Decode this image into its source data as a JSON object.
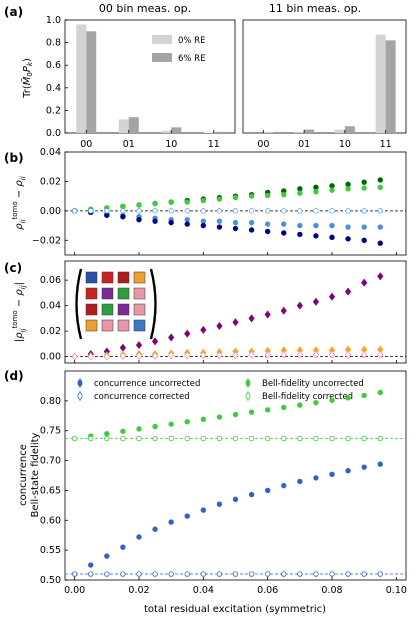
{
  "chart_data": [
    {
      "panel": "(a)",
      "type": "bar",
      "title": "00 bin meas. op.",
      "ylabel": "Tr(M\u00030 P_k)",
      "categories": [
        "00",
        "01",
        "10",
        "11"
      ],
      "ylim": [
        0,
        1.0
      ],
      "yticks": [
        "0.0",
        "0.2",
        "0.4",
        "0.6",
        "0.8",
        "1.0"
      ],
      "legend_position": "upper-right",
      "colors": {
        "0% RE": "#d3d3d3",
        "6% RE": "#a4a4a4"
      },
      "series": [
        {
          "name": "0% RE",
          "values": [
            0.96,
            0.12,
            0.02,
            0.005
          ]
        },
        {
          "name": "6% RE",
          "values": [
            0.9,
            0.14,
            0.05,
            0.01
          ]
        }
      ]
    },
    {
      "panel": "(a)",
      "type": "bar",
      "title": "11 bin meas. op.",
      "categories": [
        "00",
        "01",
        "10",
        "11"
      ],
      "ylim": [
        0,
        1.0
      ],
      "series": [
        {
          "name": "0% RE",
          "values": [
            0.0,
            0.01,
            0.03,
            0.87
          ]
        },
        {
          "name": "6% RE",
          "values": [
            0.005,
            0.03,
            0.06,
            0.82
          ]
        }
      ]
    },
    {
      "panel": "(b)",
      "type": "scatter",
      "ylabel": "rho_ii^tomo - rho_ii",
      "xlim": [
        0,
        0.1
      ],
      "ylim": [
        -0.03,
        0.04
      ],
      "yticks": [
        "−0.02",
        "0.00",
        "0.02",
        "0.04"
      ],
      "x": [
        0.0,
        0.005,
        0.01,
        0.015,
        0.02,
        0.025,
        0.03,
        0.035,
        0.04,
        0.045,
        0.05,
        0.055,
        0.06,
        0.065,
        0.07,
        0.075,
        0.08,
        0.085,
        0.09,
        0.095
      ],
      "series": [
        {
          "color": "#006400",
          "values": [
            0.0,
            0.001,
            0.002,
            0.003,
            0.004,
            0.005,
            0.006,
            0.007,
            0.008,
            0.009,
            0.01,
            0.011,
            0.0125,
            0.0135,
            0.015,
            0.016,
            0.017,
            0.018,
            0.0195,
            0.021
          ]
        },
        {
          "color": "#3ecb3e",
          "values": [
            0.0,
            0.001,
            0.002,
            0.003,
            0.004,
            0.005,
            0.006,
            0.006,
            0.007,
            0.008,
            0.009,
            0.01,
            0.0105,
            0.011,
            0.012,
            0.013,
            0.014,
            0.015,
            0.0155,
            0.016
          ]
        },
        {
          "color": "#4a90d9",
          "values": [
            0.0,
            -0.001,
            -0.002,
            -0.003,
            -0.004,
            -0.005,
            -0.006,
            -0.006,
            -0.007,
            -0.007,
            -0.008,
            -0.008,
            -0.009,
            -0.009,
            -0.01,
            -0.01,
            -0.01,
            -0.011,
            -0.011,
            -0.011
          ]
        },
        {
          "color": "#00008b",
          "values": [
            0.0,
            -0.001,
            -0.003,
            -0.004,
            -0.006,
            -0.007,
            -0.008,
            -0.009,
            -0.01,
            -0.011,
            -0.012,
            -0.013,
            -0.014,
            -0.015,
            -0.016,
            -0.017,
            -0.018,
            -0.019,
            -0.02,
            -0.022
          ]
        },
        {
          "color": "#5fa8e0",
          "open": true,
          "values": [
            0.0,
            0.0,
            0.0,
            0.0,
            0.0,
            0.0,
            0.0,
            0.0,
            0.0,
            0.0,
            0.0,
            0.0,
            0.0,
            0.0,
            0.0,
            0.0,
            0.0,
            0.0,
            0.0,
            0.0
          ]
        }
      ]
    },
    {
      "panel": "(c)",
      "type": "scatter",
      "ylabel": "|rho_ij^tomo - rho_ij|",
      "xlim": [
        0,
        0.1
      ],
      "ylim": [
        -0.005,
        0.075
      ],
      "yticks": [
        "0.00",
        "0.02",
        "0.04",
        "0.06"
      ],
      "x": [
        0.0,
        0.005,
        0.01,
        0.015,
        0.02,
        0.025,
        0.03,
        0.035,
        0.04,
        0.045,
        0.05,
        0.055,
        0.06,
        0.065,
        0.07,
        0.075,
        0.08,
        0.085,
        0.09,
        0.095
      ],
      "series": [
        {
          "color": "#800080",
          "values": [
            0.0,
            0.002,
            0.004,
            0.007,
            0.009,
            0.012,
            0.015,
            0.018,
            0.021,
            0.024,
            0.027,
            0.03,
            0.033,
            0.036,
            0.04,
            0.043,
            0.047,
            0.051,
            0.058,
            0.063
          ]
        },
        {
          "color": "#f5a623",
          "values": [
            0.0,
            0.0005,
            0.001,
            0.0015,
            0.002,
            0.002,
            0.0025,
            0.003,
            0.003,
            0.0035,
            0.004,
            0.004,
            0.0045,
            0.005,
            0.005,
            0.005,
            0.005,
            0.0055,
            0.0055,
            0.0055
          ]
        },
        {
          "color": "#e8a0a8",
          "open": true,
          "values": [
            0.0,
            0.0,
            0.0,
            0.0005,
            0.0005,
            0.0005,
            0.001,
            0.001,
            0.001,
            0.001,
            0.001,
            0.0015,
            0.0015,
            0.0015,
            0.0015,
            0.0015,
            0.0015,
            0.0015,
            0.0015,
            0.0015
          ]
        }
      ],
      "inset_grid_colors": [
        [
          "#2a4fa8",
          "#cc2222",
          "#b01c1c",
          "#f0a030"
        ],
        [
          "#cc2222",
          "#7a2a90",
          "#2e9e3e",
          "#e898a8"
        ],
        [
          "#b01c1c",
          "#2e9e3e",
          "#7a2a90",
          "#e898a8"
        ],
        [
          "#f0a030",
          "#e898a8",
          "#e898a8",
          "#3a78c8"
        ]
      ]
    },
    {
      "panel": "(d)",
      "type": "scatter",
      "ylabel_lines": [
        "concurrence",
        "Bell-state fidelity"
      ],
      "xlabel": "total residual excitation (symmetric)",
      "xlim": [
        0,
        0.1
      ],
      "ylim": [
        0.5,
        0.85
      ],
      "xticks": [
        "0.00",
        "0.02",
        "0.04",
        "0.06",
        "0.08",
        "0.10"
      ],
      "yticks": [
        "0.50",
        "0.55",
        "0.60",
        "0.65",
        "0.70",
        "0.75",
        "0.80"
      ],
      "x": [
        0.0,
        0.005,
        0.01,
        0.015,
        0.02,
        0.025,
        0.03,
        0.035,
        0.04,
        0.045,
        0.05,
        0.055,
        0.06,
        0.065,
        0.07,
        0.075,
        0.08,
        0.085,
        0.09,
        0.095
      ],
      "series": [
        {
          "name": "concurrence uncorrected",
          "color": "#3060d0",
          "marker": "filled",
          "values": [
            0.51,
            0.525,
            0.54,
            0.555,
            0.572,
            0.585,
            0.597,
            0.607,
            0.617,
            0.627,
            0.635,
            0.643,
            0.65,
            0.658,
            0.665,
            0.671,
            0.677,
            0.683,
            0.689,
            0.694
          ]
        },
        {
          "name": "concurrence corrected",
          "color": "#3060d0",
          "marker": "open",
          "values": [
            0.51,
            0.51,
            0.51,
            0.51,
            0.51,
            0.51,
            0.51,
            0.51,
            0.51,
            0.51,
            0.51,
            0.51,
            0.51,
            0.51,
            0.51,
            0.51,
            0.51,
            0.51,
            0.51,
            0.51
          ]
        },
        {
          "name": "Bell-fidelity uncorrected",
          "color": "#3ecb3e",
          "marker": "filled",
          "values": [
            0.737,
            0.741,
            0.745,
            0.749,
            0.753,
            0.757,
            0.761,
            0.765,
            0.769,
            0.773,
            0.777,
            0.781,
            0.785,
            0.789,
            0.793,
            0.797,
            0.801,
            0.805,
            0.809,
            0.814
          ]
        },
        {
          "name": "Bell-fidelity corrected",
          "color": "#3ecb3e",
          "marker": "open",
          "values": [
            0.737,
            0.737,
            0.737,
            0.737,
            0.737,
            0.737,
            0.737,
            0.737,
            0.737,
            0.737,
            0.737,
            0.737,
            0.737,
            0.737,
            0.737,
            0.737,
            0.737,
            0.737,
            0.737,
            0.737
          ]
        }
      ],
      "legend_position": "top"
    }
  ]
}
